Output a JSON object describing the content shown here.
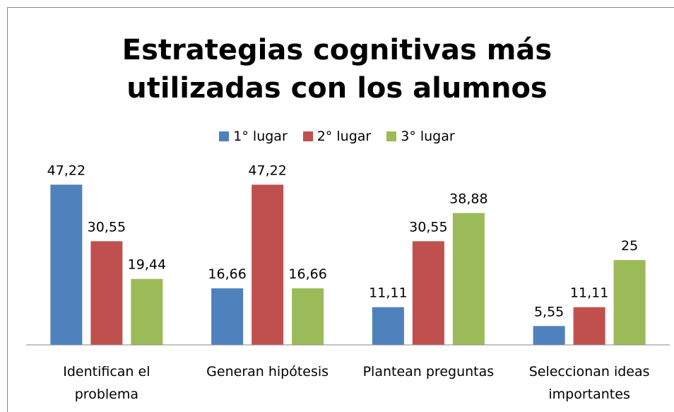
{
  "chart_data": {
    "type": "bar",
    "title": "Estrategias cognitivas más utilizadas con los alumnos",
    "categories": [
      "Identifican el problema",
      "Generan hipótesis",
      "Plantean preguntas",
      "Seleccionan ideas importantes"
    ],
    "series": [
      {
        "name": "1° lugar",
        "color": "#4f81bd",
        "values": [
          47.22,
          16.66,
          11.11,
          5.55
        ],
        "value_labels": [
          "47,22",
          "16,66",
          "11,11",
          "5,55"
        ]
      },
      {
        "name": "2° lugar",
        "color": "#c0504d",
        "values": [
          30.55,
          47.22,
          30.55,
          11.11
        ],
        "value_labels": [
          "30,55",
          "47,22",
          "30,55",
          "11,11"
        ]
      },
      {
        "name": "3° lugar",
        "color": "#9bbb59",
        "values": [
          19.44,
          16.66,
          38.88,
          25
        ],
        "value_labels": [
          "19,44",
          "16,66",
          "38,88",
          "25"
        ]
      }
    ],
    "ylim": [
      0,
      50
    ],
    "legend": "top"
  }
}
